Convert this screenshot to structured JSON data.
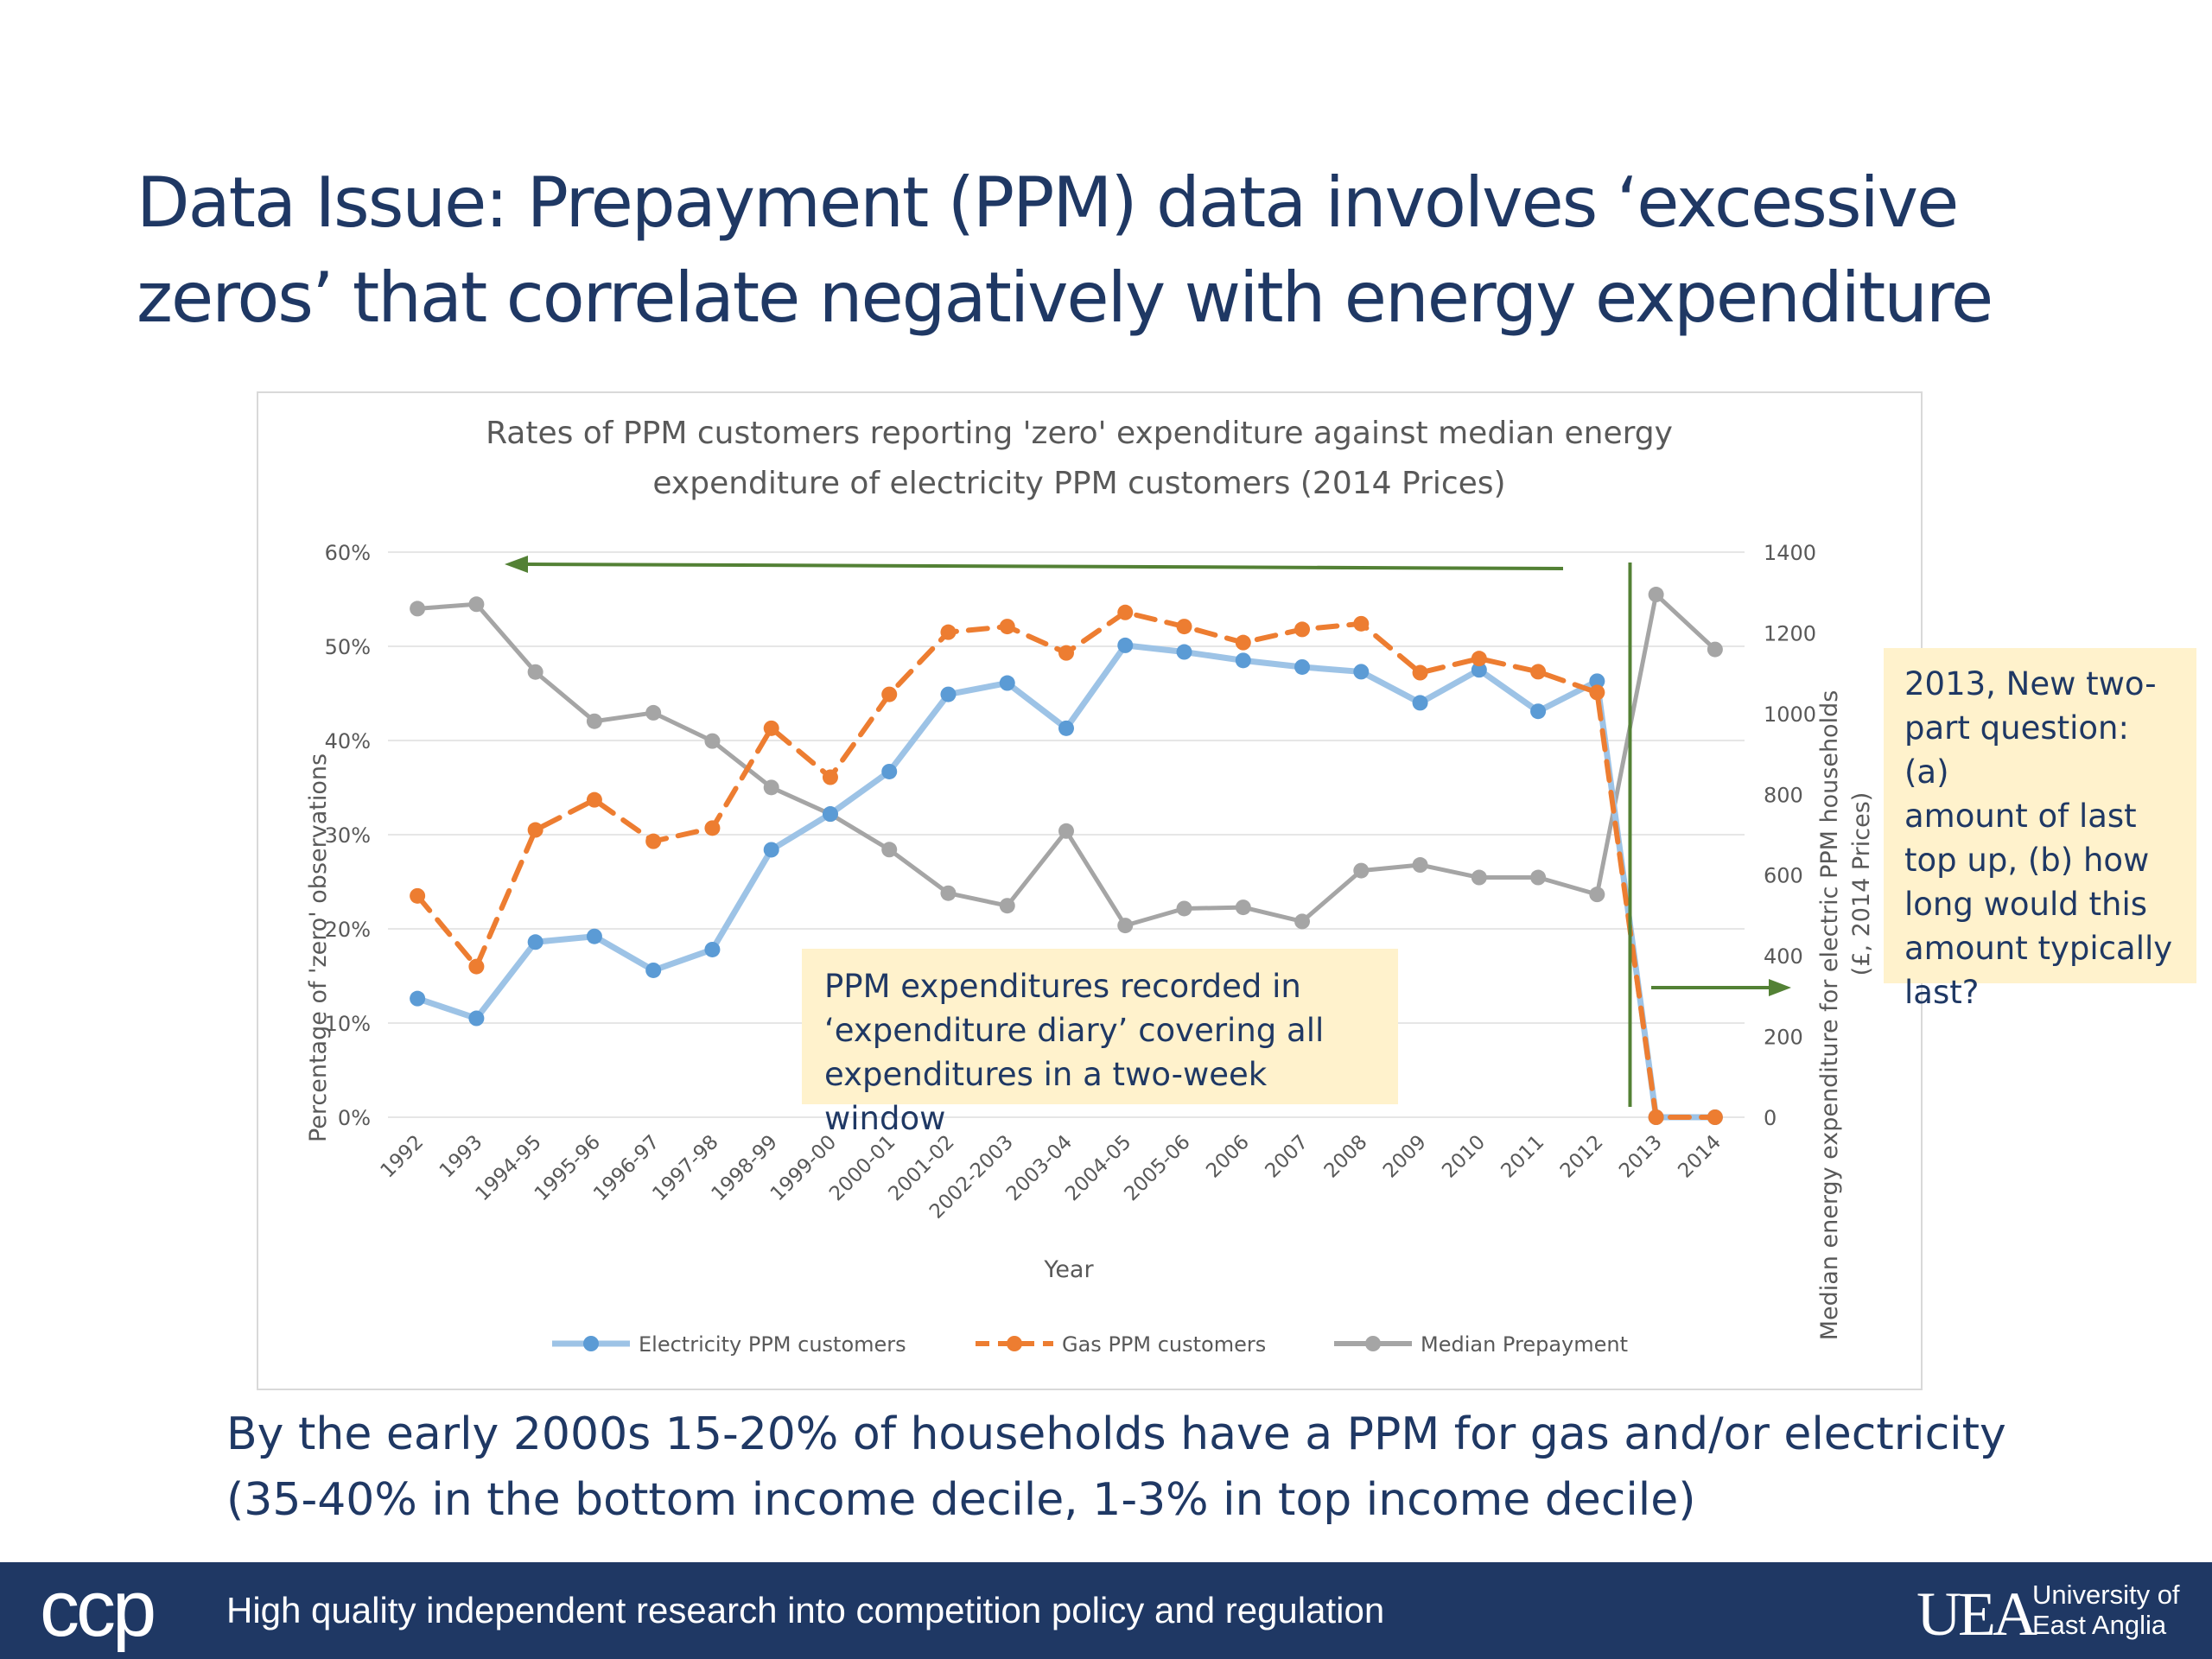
{
  "slide": {
    "title_line1": "Data Issue: Prepayment (PPM) data involves ‘excessive",
    "title_line2": "zeros’ that correlate negatively with energy expenditure",
    "bottom_line1": "By the early 2000s 15-20% of households have a PPM for gas and/or electricity",
    "bottom_line2": "(35-40% in the bottom income decile, 1-3% in top income decile)"
  },
  "callouts": {
    "left": [
      "PPM expenditures recorded in",
      "‘expenditure diary’ covering all",
      "expenditures in a two-week window"
    ],
    "right": [
      "2013, New two-",
      "part question: (a)",
      "amount of last",
      "top up, (b) how",
      "long would this",
      "amount typically",
      "last?"
    ]
  },
  "footer": {
    "ccp_logo": "ccp",
    "tagline": "High quality independent research into competition policy and regulation",
    "uea_mark": "UEA",
    "uea_line1": "University of",
    "uea_line2": "East Anglia"
  },
  "colors": {
    "electricity": "#5b9bd5",
    "electricity_line": "#9dc3e6",
    "gas": "#ed7d31",
    "median": "#a5a5a5",
    "annotation": "#538135",
    "title": "#1f3864"
  },
  "chart_data": {
    "type": "line",
    "title_line1": "Rates of PPM customers reporting 'zero' expenditure against median energy",
    "title_line2": "expenditure of electricity PPM customers (2014 Prices)",
    "xlabel": "Year",
    "ylabel": "Percentage of 'zero' observations",
    "y2label_line1": "Median energy expenditure for electric PPM households",
    "y2label_line2": "(£, 2014 Prices)",
    "ylim": [
      0,
      60
    ],
    "yticks": [
      "0%",
      "10%",
      "20%",
      "30%",
      "40%",
      "50%",
      "60%"
    ],
    "y2lim": [
      0,
      1400
    ],
    "y2ticks": [
      "0",
      "200",
      "400",
      "600",
      "800",
      "1000",
      "1200",
      "1400"
    ],
    "grid": true,
    "legend_position": "bottom",
    "categories": [
      "1992",
      "1993",
      "1994-95",
      "1995-96",
      "1996-97",
      "1997-98",
      "1998-99",
      "1999-00",
      "2000-01",
      "2001-02",
      "2002-2003",
      "2003-04",
      "2004-05",
      "2005-06",
      "2006",
      "2007",
      "2008",
      "2009",
      "2010",
      "2011",
      "2012",
      "2013",
      "2014"
    ],
    "series": [
      {
        "name": "Electricity PPM customers",
        "axis": "left",
        "style": "solid",
        "values": [
          12.6,
          10.5,
          18.6,
          19.2,
          15.6,
          17.8,
          28.4,
          32.2,
          36.7,
          44.9,
          46.1,
          41.3,
          50.1,
          49.4,
          48.5,
          47.8,
          47.3,
          44.0,
          47.5,
          43.1,
          46.3,
          0,
          0
        ]
      },
      {
        "name": "Gas PPM customers",
        "axis": "left",
        "style": "dashed",
        "values": [
          23.5,
          16.0,
          30.5,
          33.7,
          29.3,
          30.7,
          41.3,
          36.1,
          44.9,
          51.5,
          52.1,
          49.3,
          53.6,
          52.1,
          50.4,
          51.8,
          52.4,
          47.2,
          48.7,
          47.3,
          45.1,
          0,
          0
        ]
      },
      {
        "name": "Median Prepayment",
        "axis": "right",
        "style": "solid",
        "values": [
          1260,
          1271,
          1103,
          981,
          1002,
          932,
          817,
          751,
          663,
          555,
          524,
          709,
          475,
          517,
          520,
          485,
          611,
          625,
          594,
          594,
          552,
          1295,
          1159
        ]
      }
    ],
    "annotations": [
      {
        "type": "vertical-line",
        "between": [
          "2012",
          "2013"
        ]
      },
      {
        "type": "arrow",
        "direction": "left",
        "meaning": "period before 2013 (expenditure diary)"
      },
      {
        "type": "arrow",
        "direction": "right",
        "meaning": "period from 2013 (two-part question)"
      }
    ]
  }
}
